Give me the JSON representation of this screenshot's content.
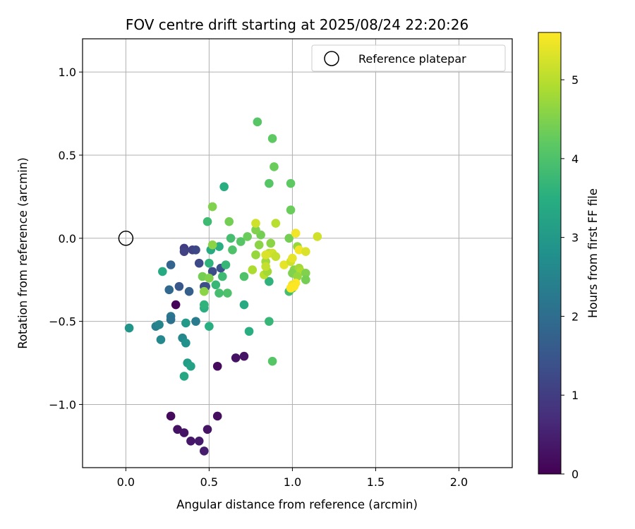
{
  "chart_data": {
    "type": "scatter",
    "title": "FOV centre drift starting at 2025/08/24 22:20:26",
    "xlabel": "Angular distance from reference (arcmin)",
    "ylabel": "Rotation from reference (arcmin)",
    "xlim": [
      -0.26,
      2.32
    ],
    "ylim": [
      -1.38,
      1.2
    ],
    "x_ticks": [
      0.0,
      0.5,
      1.0,
      1.5,
      2.0
    ],
    "x_tick_labels": [
      "0.0",
      "0.5",
      "1.0",
      "1.5",
      "2.0"
    ],
    "y_ticks": [
      -1.0,
      -0.5,
      0.0,
      0.5,
      1.0
    ],
    "y_tick_labels": [
      "−1.0",
      "−0.5",
      "0.0",
      "0.5",
      "1.0"
    ],
    "grid": true,
    "legend": {
      "position": "top-right",
      "entries": [
        "Reference platepar"
      ]
    },
    "colorbar": {
      "label": "Hours from first FF file",
      "range": [
        0,
        5.6
      ],
      "ticks": [
        0,
        1,
        2,
        3,
        4,
        5
      ],
      "tick_labels": [
        "0",
        "1",
        "2",
        "3",
        "4",
        "5"
      ],
      "colormap": "viridis"
    },
    "reference_point": {
      "x": 0.0,
      "y": 0.0
    },
    "series": [
      {
        "points": [
          {
            "x": 0.3,
            "y": -0.4,
            "c": 0.05
          },
          {
            "x": 0.27,
            "y": -1.07,
            "c": 0.15
          },
          {
            "x": 0.31,
            "y": -1.15,
            "c": 0.25
          },
          {
            "x": 0.35,
            "y": -1.17,
            "c": 0.3
          },
          {
            "x": 0.39,
            "y": -1.22,
            "c": 0.35
          },
          {
            "x": 0.44,
            "y": -1.22,
            "c": 0.4
          },
          {
            "x": 0.47,
            "y": -1.28,
            "c": 0.45
          },
          {
            "x": 0.49,
            "y": -1.15,
            "c": 0.3
          },
          {
            "x": 0.55,
            "y": -1.07,
            "c": 0.2
          },
          {
            "x": 0.55,
            "y": -0.77,
            "c": 0.15
          },
          {
            "x": 0.66,
            "y": -0.72,
            "c": 0.25
          },
          {
            "x": 0.71,
            "y": -0.71,
            "c": 0.3
          },
          {
            "x": 0.35,
            "y": -0.06,
            "c": 1.0
          },
          {
            "x": 0.35,
            "y": -0.08,
            "c": 1.1
          },
          {
            "x": 0.4,
            "y": -0.07,
            "c": 1.05
          },
          {
            "x": 0.42,
            "y": -0.07,
            "c": 1.2
          },
          {
            "x": 0.44,
            "y": -0.15,
            "c": 1.25
          },
          {
            "x": 0.52,
            "y": -0.2,
            "c": 1.3
          },
          {
            "x": 0.57,
            "y": -0.18,
            "c": 1.4
          },
          {
            "x": 0.48,
            "y": -0.29,
            "c": 1.4
          },
          {
            "x": 0.47,
            "y": -0.29,
            "c": 1.3
          },
          {
            "x": 0.32,
            "y": -0.29,
            "c": 1.5
          },
          {
            "x": 0.38,
            "y": -0.32,
            "c": 1.7
          },
          {
            "x": 0.27,
            "y": -0.16,
            "c": 1.8
          },
          {
            "x": 0.26,
            "y": -0.31,
            "c": 1.9
          },
          {
            "x": 0.27,
            "y": -0.47,
            "c": 2.2
          },
          {
            "x": 0.27,
            "y": -0.49,
            "c": 2.1
          },
          {
            "x": 0.42,
            "y": -0.5,
            "c": 2.3
          },
          {
            "x": 0.18,
            "y": -0.53,
            "c": 2.4
          },
          {
            "x": 0.2,
            "y": -0.52,
            "c": 2.5
          },
          {
            "x": 0.21,
            "y": -0.61,
            "c": 2.6
          },
          {
            "x": 0.34,
            "y": -0.6,
            "c": 2.6
          },
          {
            "x": 0.36,
            "y": -0.63,
            "c": 2.8
          },
          {
            "x": 0.02,
            "y": -0.54,
            "c": 2.9
          },
          {
            "x": 0.36,
            "y": -0.51,
            "c": 3.0
          },
          {
            "x": 0.37,
            "y": -0.75,
            "c": 3.1
          },
          {
            "x": 0.39,
            "y": -0.77,
            "c": 3.2
          },
          {
            "x": 0.35,
            "y": -0.83,
            "c": 3.3
          },
          {
            "x": 0.22,
            "y": -0.2,
            "c": 3.4
          },
          {
            "x": 0.5,
            "y": -0.53,
            "c": 3.5
          },
          {
            "x": 0.47,
            "y": -0.42,
            "c": 3.5
          },
          {
            "x": 0.47,
            "y": -0.4,
            "c": 3.6
          },
          {
            "x": 0.51,
            "y": -0.07,
            "c": 3.4
          },
          {
            "x": 0.56,
            "y": -0.05,
            "c": 3.5
          },
          {
            "x": 0.59,
            "y": 0.31,
            "c": 3.5
          },
          {
            "x": 0.5,
            "y": -0.15,
            "c": 3.6
          },
          {
            "x": 0.54,
            "y": -0.28,
            "c": 3.7
          },
          {
            "x": 0.58,
            "y": -0.23,
            "c": 3.8
          },
          {
            "x": 0.6,
            "y": -0.16,
            "c": 3.7
          },
          {
            "x": 0.49,
            "y": 0.1,
            "c": 3.8
          },
          {
            "x": 0.63,
            "y": 0.0,
            "c": 3.9
          },
          {
            "x": 0.61,
            "y": -0.33,
            "c": 4.0
          },
          {
            "x": 0.56,
            "y": -0.33,
            "c": 3.9
          },
          {
            "x": 0.71,
            "y": -0.4,
            "c": 3.4
          },
          {
            "x": 0.74,
            "y": -0.56,
            "c": 3.5
          },
          {
            "x": 0.86,
            "y": -0.26,
            "c": 3.6
          },
          {
            "x": 0.86,
            "y": -0.5,
            "c": 3.7
          },
          {
            "x": 0.88,
            "y": -0.74,
            "c": 4.1
          },
          {
            "x": 0.98,
            "y": -0.32,
            "c": 3.9
          },
          {
            "x": 1.0,
            "y": -0.3,
            "c": 4.2
          },
          {
            "x": 0.64,
            "y": -0.07,
            "c": 4.0
          },
          {
            "x": 0.69,
            "y": -0.02,
            "c": 4.1
          },
          {
            "x": 0.71,
            "y": -0.23,
            "c": 4.0
          },
          {
            "x": 0.73,
            "y": 0.01,
            "c": 4.3
          },
          {
            "x": 0.79,
            "y": 0.7,
            "c": 4.1
          },
          {
            "x": 0.88,
            "y": 0.6,
            "c": 4.2
          },
          {
            "x": 0.89,
            "y": 0.43,
            "c": 4.3
          },
          {
            "x": 0.86,
            "y": 0.33,
            "c": 4.1
          },
          {
            "x": 0.99,
            "y": 0.33,
            "c": 4.2
          },
          {
            "x": 0.99,
            "y": 0.17,
            "c": 4.3
          },
          {
            "x": 0.98,
            "y": 0.0,
            "c": 4.4
          },
          {
            "x": 0.62,
            "y": 0.1,
            "c": 4.4
          },
          {
            "x": 0.52,
            "y": 0.19,
            "c": 4.5
          },
          {
            "x": 0.46,
            "y": -0.23,
            "c": 4.4
          },
          {
            "x": 0.5,
            "y": -0.24,
            "c": 4.5
          },
          {
            "x": 0.47,
            "y": -0.32,
            "c": 4.6
          },
          {
            "x": 0.52,
            "y": -0.04,
            "c": 4.6
          },
          {
            "x": 0.81,
            "y": 0.02,
            "c": 4.4
          },
          {
            "x": 0.78,
            "y": 0.05,
            "c": 4.5
          },
          {
            "x": 0.8,
            "y": -0.04,
            "c": 4.6
          },
          {
            "x": 0.87,
            "y": -0.03,
            "c": 4.6
          },
          {
            "x": 0.84,
            "y": -0.14,
            "c": 4.8
          },
          {
            "x": 0.78,
            "y": -0.1,
            "c": 4.7
          },
          {
            "x": 0.76,
            "y": -0.19,
            "c": 4.9
          },
          {
            "x": 0.83,
            "y": -0.22,
            "c": 5.0
          },
          {
            "x": 0.85,
            "y": -0.2,
            "c": 4.8
          },
          {
            "x": 0.84,
            "y": -0.17,
            "c": 5.1
          },
          {
            "x": 0.86,
            "y": -0.09,
            "c": 5.0
          },
          {
            "x": 0.88,
            "y": -0.09,
            "c": 5.2
          },
          {
            "x": 0.9,
            "y": -0.11,
            "c": 5.1
          },
          {
            "x": 0.9,
            "y": 0.09,
            "c": 5.0
          },
          {
            "x": 0.78,
            "y": 0.09,
            "c": 5.2
          },
          {
            "x": 0.84,
            "y": -0.1,
            "c": 5.3
          },
          {
            "x": 0.95,
            "y": -0.16,
            "c": 5.4
          },
          {
            "x": 0.99,
            "y": -0.14,
            "c": 5.2
          },
          {
            "x": 1.01,
            "y": -0.19,
            "c": 4.6
          },
          {
            "x": 1.04,
            "y": -0.18,
            "c": 4.8
          },
          {
            "x": 1.05,
            "y": -0.2,
            "c": 4.9
          },
          {
            "x": 1.0,
            "y": -0.21,
            "c": 4.5
          },
          {
            "x": 1.03,
            "y": -0.23,
            "c": 4.7
          },
          {
            "x": 1.08,
            "y": -0.21,
            "c": 4.5
          },
          {
            "x": 1.08,
            "y": -0.25,
            "c": 4.4
          },
          {
            "x": 1.03,
            "y": -0.05,
            "c": 4.7
          },
          {
            "x": 1.04,
            "y": -0.07,
            "c": 5.5
          },
          {
            "x": 1.08,
            "y": -0.08,
            "c": 5.3
          },
          {
            "x": 1.15,
            "y": 0.01,
            "c": 5.2
          },
          {
            "x": 1.02,
            "y": 0.03,
            "c": 5.5
          },
          {
            "x": 1.0,
            "y": -0.12,
            "c": 5.4
          },
          {
            "x": 1.02,
            "y": -0.27,
            "c": 5.6
          },
          {
            "x": 1.0,
            "y": -0.28,
            "c": 5.5
          },
          {
            "x": 0.99,
            "y": -0.3,
            "c": 5.6
          },
          {
            "x": 1.01,
            "y": -0.29,
            "c": 5.6
          }
        ]
      }
    ]
  }
}
